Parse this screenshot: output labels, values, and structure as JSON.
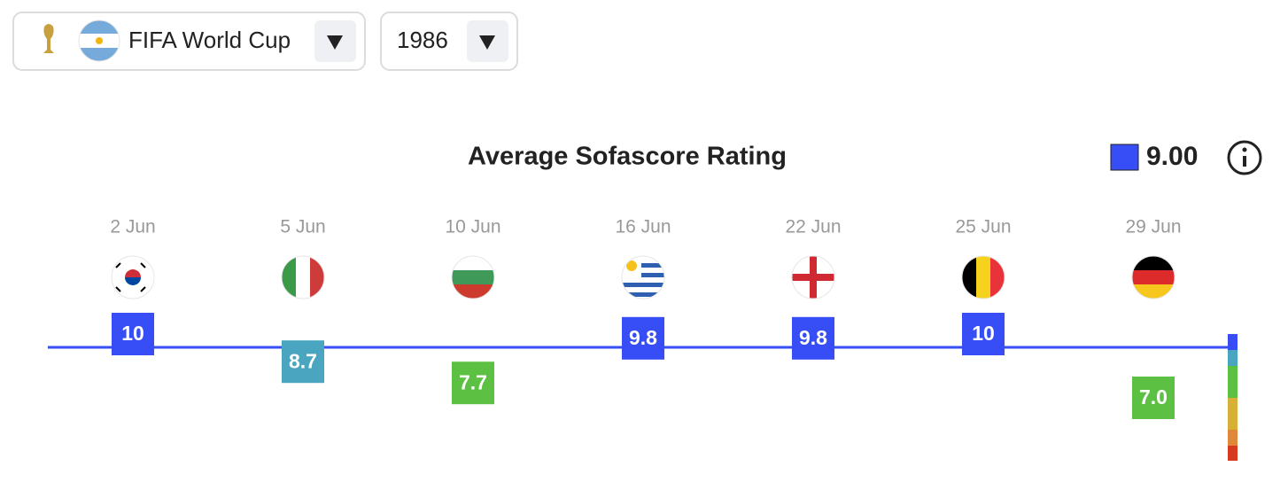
{
  "header": {
    "competition": "FIFA World Cup",
    "season": "1986"
  },
  "chart_data": {
    "type": "rating",
    "title": "Average Sofascore Rating",
    "average": 9,
    "average_label": "9.00",
    "average_color": "#374df5",
    "categories": [
      "2 Jun",
      "5 Jun",
      "10 Jun",
      "16 Jun",
      "22 Jun",
      "25 Jun",
      "29 Jun"
    ],
    "values": [
      10,
      8.7,
      7.7,
      9.8,
      9.8,
      10,
      7.0
    ],
    "value_labels": [
      "10",
      "8.7",
      "7.7",
      "9.8",
      "9.8",
      "10",
      "7.0"
    ],
    "colors": [
      "#374df5",
      "#4aa6c0",
      "#5cc043",
      "#374df5",
      "#374df5",
      "#374df5",
      "#5cc043"
    ]
  }
}
